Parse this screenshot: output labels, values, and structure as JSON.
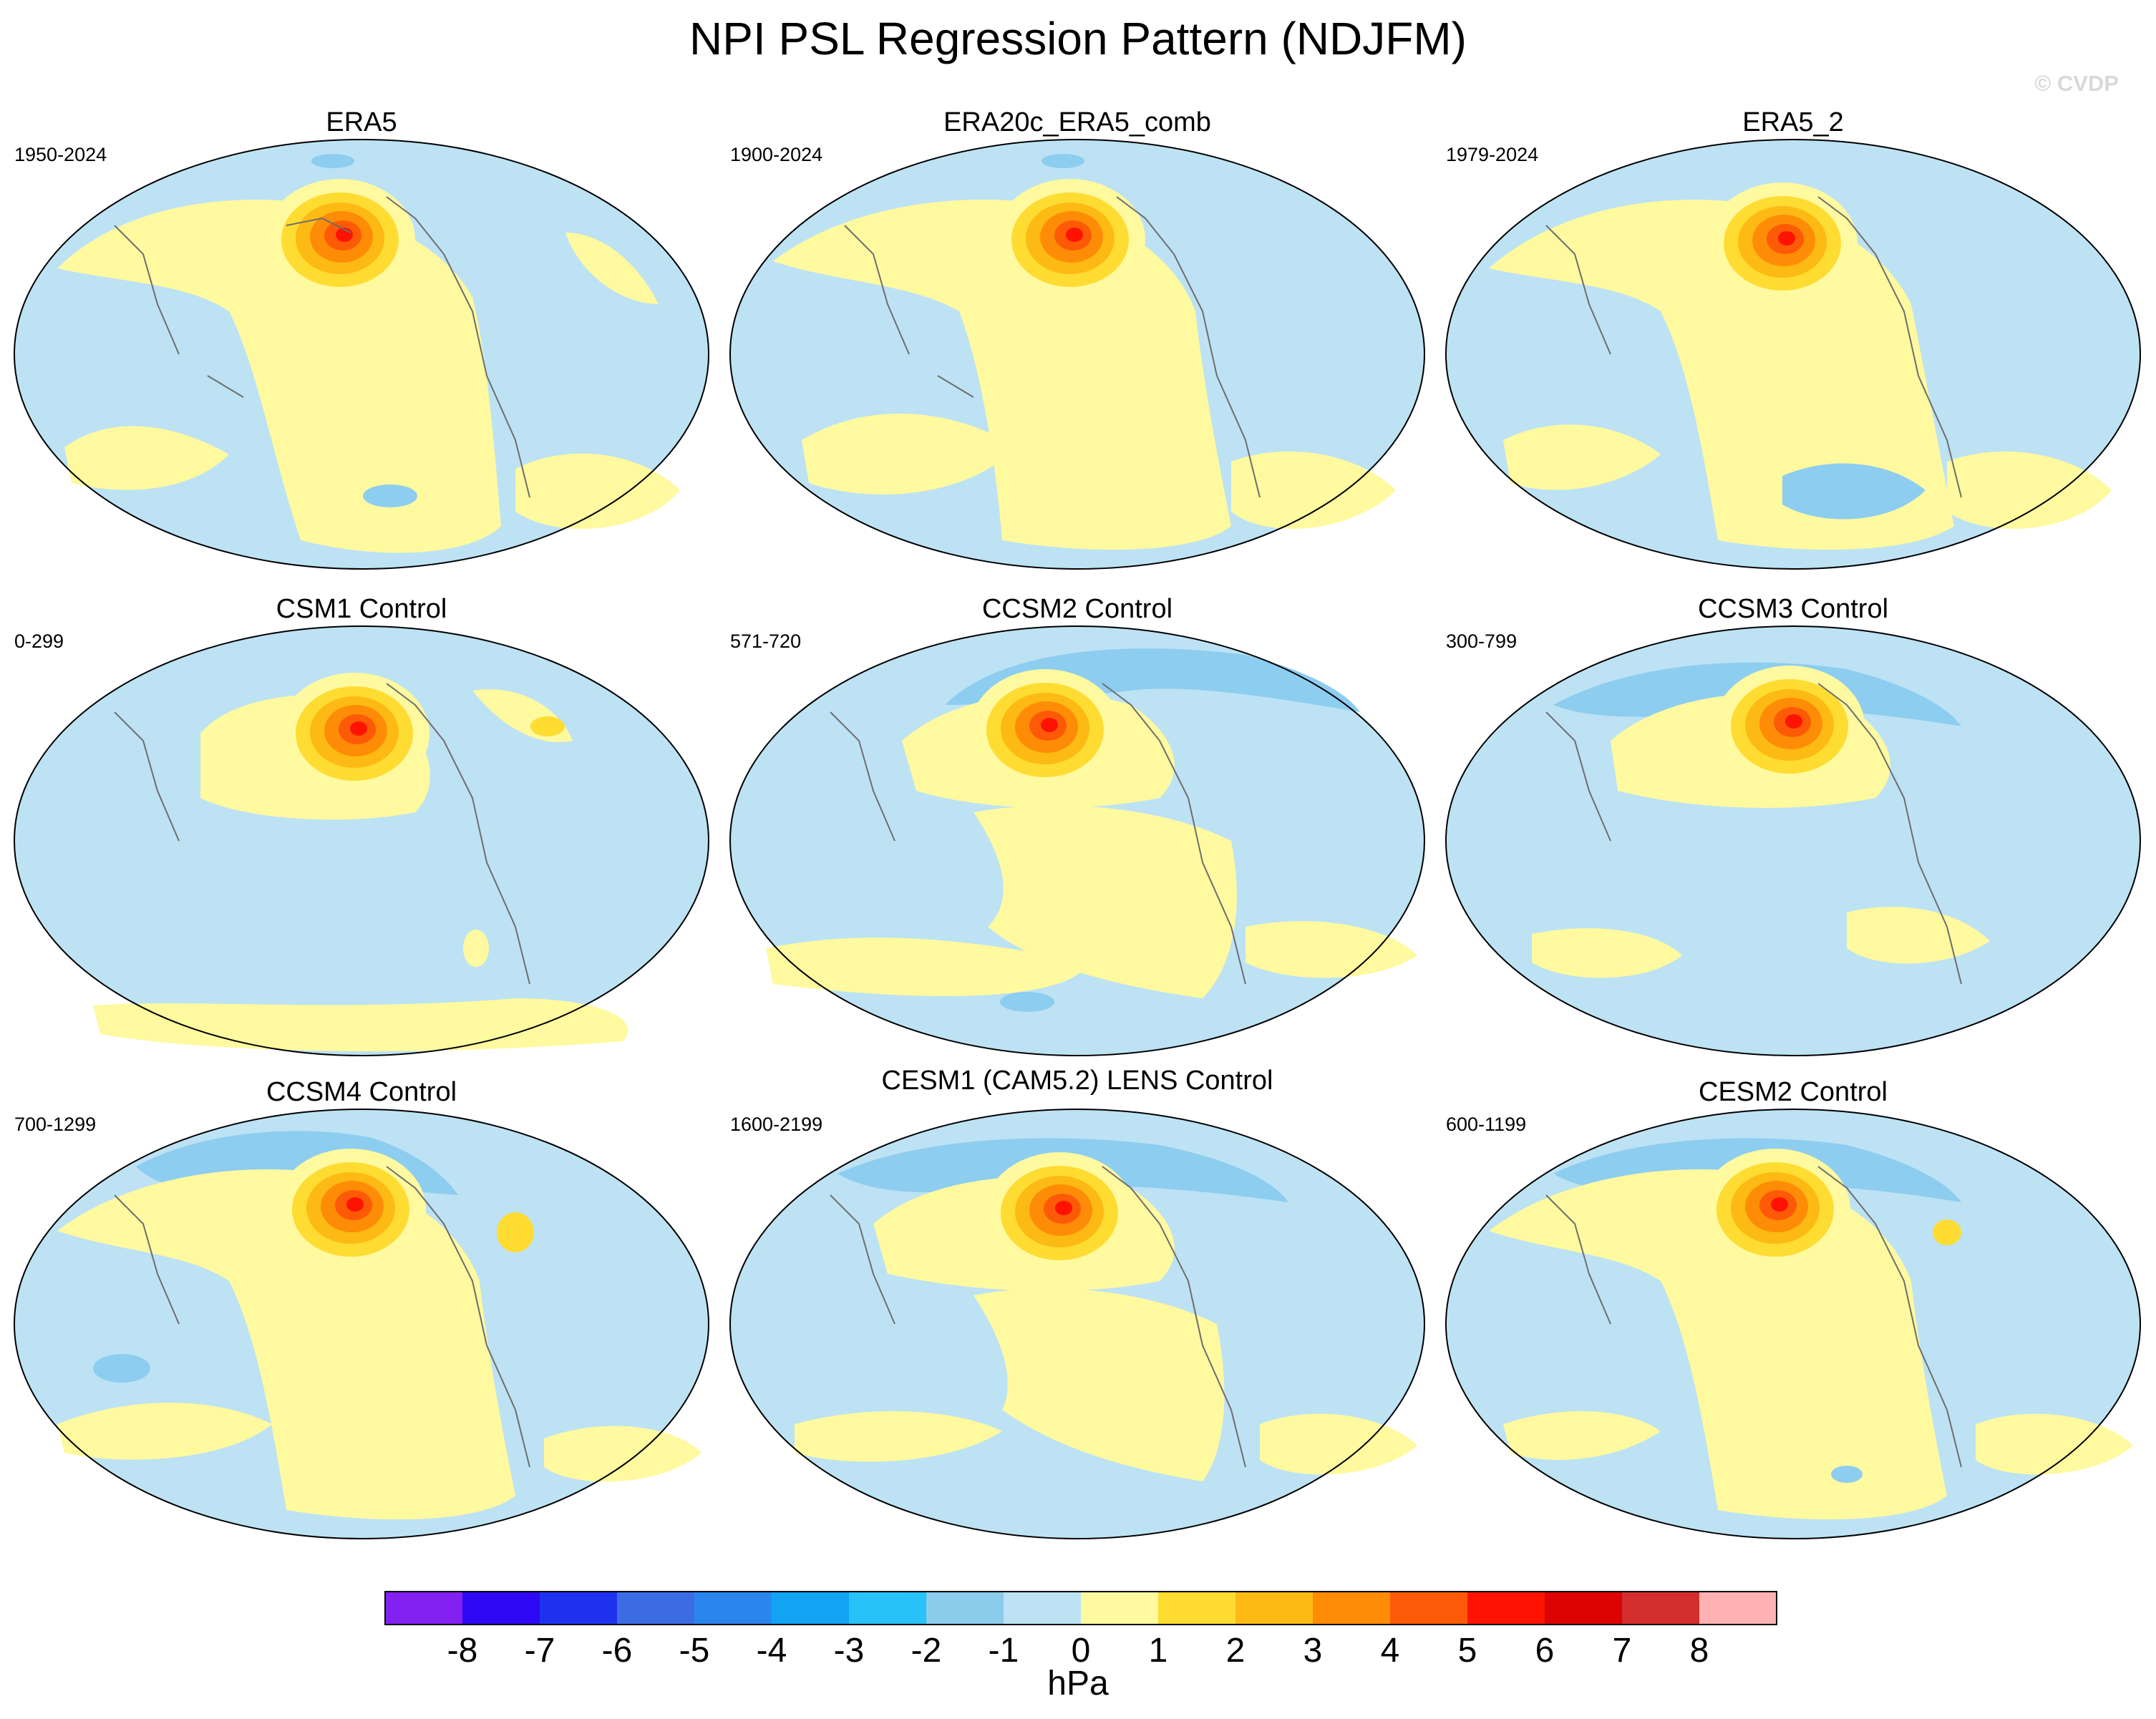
{
  "title": "NPI PSL Regression Pattern (NDJFM)",
  "watermark": "© CVDP",
  "colors": {
    "ocean_light_blue": "#bde2f4",
    "light_yellow": "#fff9a0",
    "coast": "#6e6e6e",
    "negative_blue": "#8dcdf0",
    "deeper_blue": "#6bbde8"
  },
  "panels": [
    {
      "name": "ERA5",
      "period": "1950-2024"
    },
    {
      "name": "ERA20c_ERA5_comb",
      "period": "1900-2024"
    },
    {
      "name": "ERA5_2",
      "period": "1979-2024"
    },
    {
      "name": "CSM1 Control",
      "period": "0-299"
    },
    {
      "name": "CCSM2 Control",
      "period": "571-720"
    },
    {
      "name": "CCSM3 Control",
      "period": "300-799"
    },
    {
      "name": "CCSM4 Control",
      "period": "700-1299"
    },
    {
      "name": "CESM1 (CAM5.2) LENS Control",
      "period": "1600-2199"
    },
    {
      "name": "CESM2 Control",
      "period": "600-1199"
    }
  ],
  "colorbar": {
    "label": "hPa",
    "ticks": [
      "-8",
      "-7",
      "-6",
      "-5",
      "-4",
      "-3",
      "-2",
      "-1",
      "0",
      "1",
      "2",
      "3",
      "4",
      "5",
      "6",
      "7",
      "8"
    ],
    "colors": [
      "#8321f0",
      "#2e08f5",
      "#1e32ee",
      "#3c6ce4",
      "#2a86ee",
      "#12a3f2",
      "#27c2f7",
      "#8bcbec",
      "#bde2f4",
      "#fff9a0",
      "#fedc32",
      "#fdb914",
      "#fe8c06",
      "#fd5a07",
      "#fe1303",
      "#db0403",
      "#d42d2d",
      "#ffb2b2"
    ]
  }
}
